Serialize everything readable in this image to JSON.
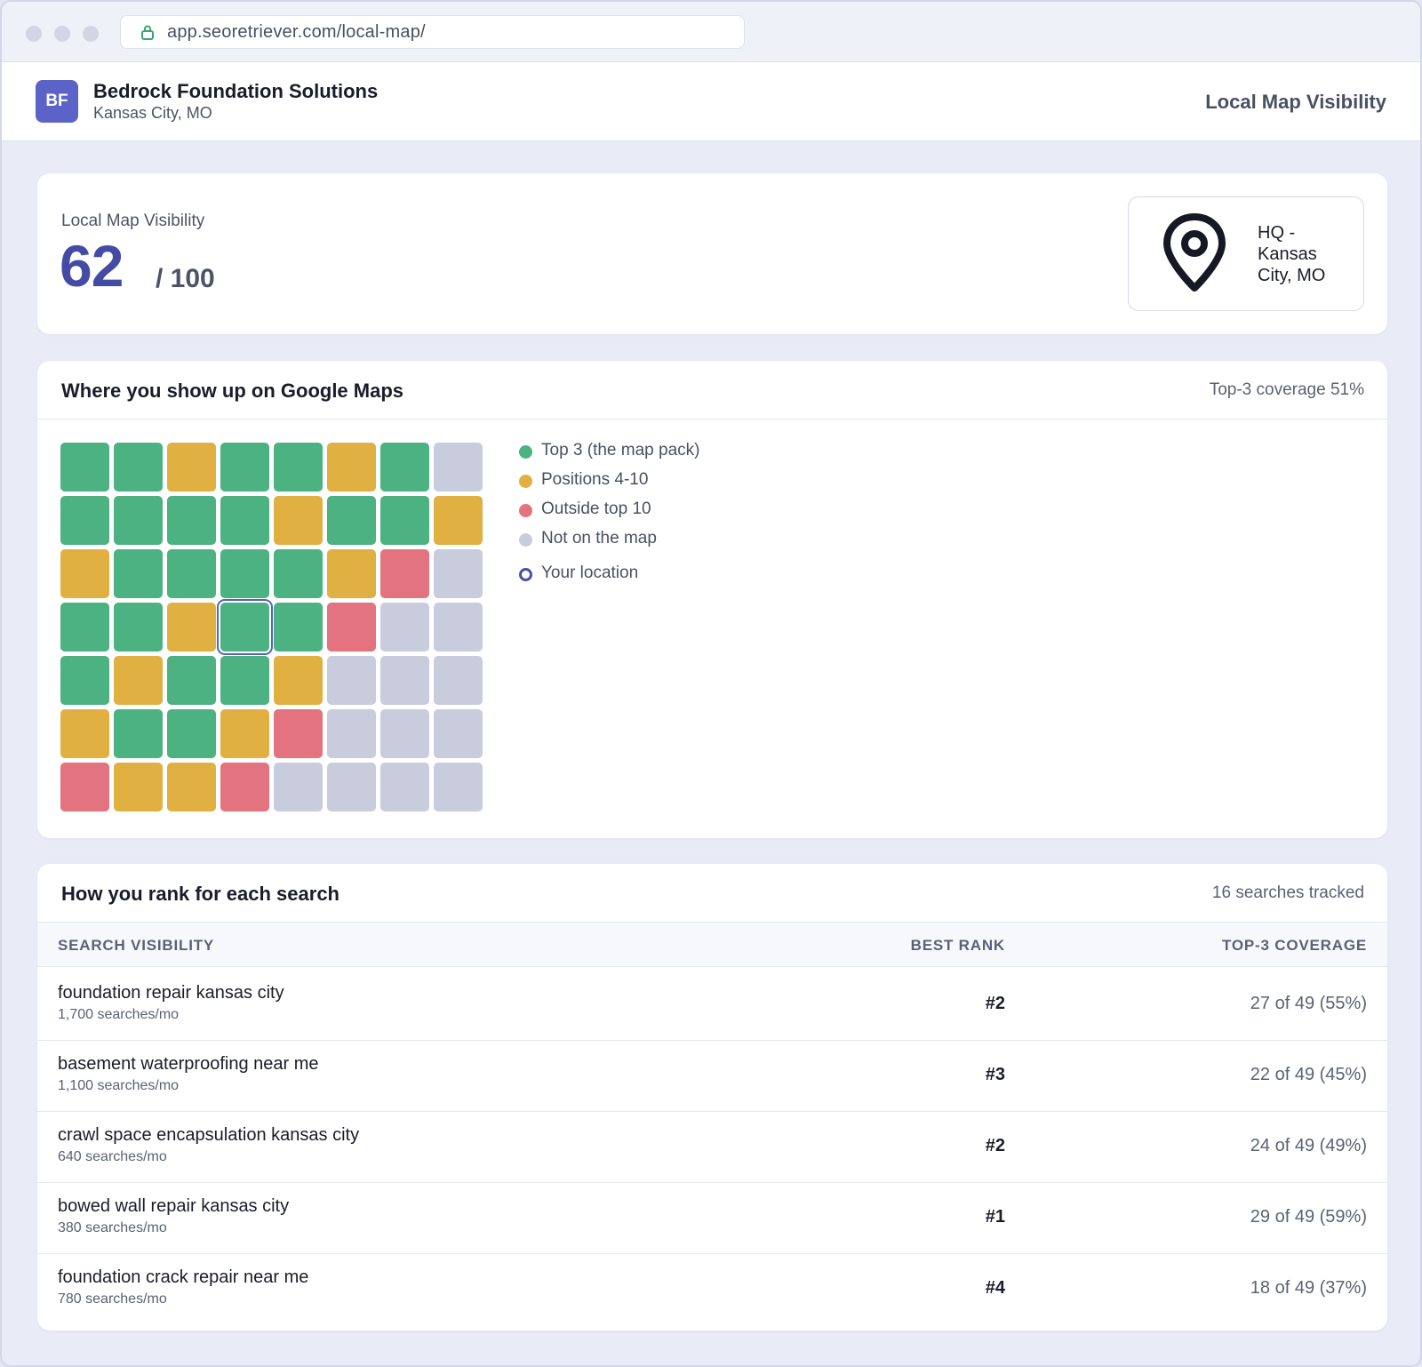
{
  "browser": {
    "url": "app.seoretriever.com/local-map/"
  },
  "header": {
    "avatar_initials": "BF",
    "business_name": "Bedrock Foundation Solutions",
    "business_location": "Kansas City, MO",
    "page_title": "Local Map Visibility"
  },
  "score": {
    "label": "Local Map Visibility",
    "value": "62",
    "max": "/ 100",
    "location_name": "HQ - Kansas City, MO"
  },
  "map": {
    "title": "Where you show up on Google Maps",
    "coverage": "Top-3 coverage 51%",
    "colors": {
      "top3": "#4cb282",
      "pos4_10": "#e0b043",
      "outside10": "#e2737f",
      "not_on_map": "#c9ccdc",
      "your_location": "#4a50a8"
    },
    "grid": [
      [
        "top3",
        "top3",
        "pos4_10",
        "top3",
        "top3",
        "pos4_10",
        "top3",
        "not_on_map"
      ],
      [
        "top3",
        "top3",
        "top3",
        "top3",
        "pos4_10",
        "top3",
        "top3",
        "pos4_10"
      ],
      [
        "pos4_10",
        "top3",
        "top3",
        "top3",
        "top3",
        "pos4_10",
        "outside10",
        "not_on_map"
      ],
      [
        "top3",
        "top3",
        "pos4_10",
        "top3",
        "top3",
        "outside10",
        "not_on_map",
        "not_on_map"
      ],
      [
        "top3",
        "pos4_10",
        "top3",
        "top3",
        "pos4_10",
        "not_on_map",
        "not_on_map",
        "not_on_map"
      ],
      [
        "pos4_10",
        "top3",
        "top3",
        "pos4_10",
        "outside10",
        "not_on_map",
        "not_on_map",
        "not_on_map"
      ],
      [
        "outside10",
        "pos4_10",
        "pos4_10",
        "outside10",
        "not_on_map",
        "not_on_map",
        "not_on_map",
        "not_on_map"
      ]
    ],
    "your_location_cell": {
      "row": 4,
      "col": 4
    },
    "legend": [
      {
        "key": "top3",
        "label": "Top 3 (the map pack)"
      },
      {
        "key": "pos4_10",
        "label": "Positions 4-10"
      },
      {
        "key": "outside10",
        "label": "Outside top 10"
      },
      {
        "key": "not_on_map",
        "label": "Not on the map"
      },
      {
        "key": "your_location",
        "label": "Your location"
      }
    ]
  },
  "rankings": {
    "title": "How you rank for each search",
    "count": "16 searches tracked",
    "columns": [
      "SEARCH VISIBILITY",
      "BEST RANK",
      "TOP-3 COVERAGE"
    ],
    "rows": [
      {
        "keyword": "foundation repair kansas city",
        "volume": "1,700 searches/mo",
        "best_rank": "#2",
        "coverage": "27 of 49 (55%)"
      },
      {
        "keyword": "basement waterproofing near me",
        "volume": "1,100 searches/mo",
        "best_rank": "#3",
        "coverage": "22 of 49 (45%)"
      },
      {
        "keyword": "crawl space encapsulation kansas city",
        "volume": "640 searches/mo",
        "best_rank": "#2",
        "coverage": "24 of 49 (49%)"
      },
      {
        "keyword": "bowed wall repair kansas city",
        "volume": "380 searches/mo",
        "best_rank": "#1",
        "coverage": "29 of 49 (59%)"
      },
      {
        "keyword": "foundation crack repair near me",
        "volume": "780 searches/mo",
        "best_rank": "#4",
        "coverage": "18 of 49 (37%)"
      }
    ]
  }
}
